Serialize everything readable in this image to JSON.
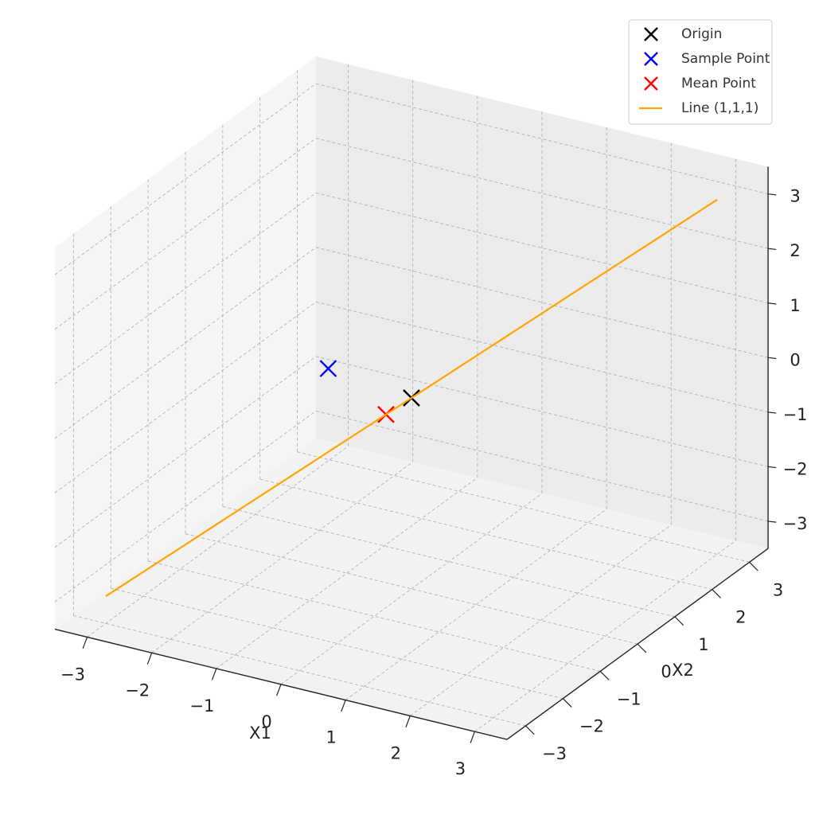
{
  "chart_data": {
    "type": "scatter3d",
    "xlabel": "X1",
    "ylabel": "X2",
    "xlim": [
      -3.5,
      3.5
    ],
    "ylim": [
      -3.5,
      3.5
    ],
    "zlim": [
      -3.5,
      3.5
    ],
    "xticks": [
      {
        "value": -3,
        "label": "−3"
      },
      {
        "value": -2,
        "label": "−2"
      },
      {
        "value": -1,
        "label": "−1"
      },
      0,
      1,
      2,
      3
    ],
    "yticks": [
      {
        "value": -3,
        "label": "−3"
      },
      {
        "value": -2,
        "label": "−2"
      },
      {
        "value": -1,
        "label": "−1"
      },
      0,
      1,
      2,
      3
    ],
    "zticks": [
      {
        "value": -3,
        "label": "−3"
      },
      {
        "value": -2,
        "label": "−2"
      },
      {
        "value": -1,
        "label": "−1"
      },
      0,
      1,
      2,
      3
    ],
    "grid": true,
    "legend": "upper right",
    "series": [
      {
        "name": "Origin",
        "type": "scatter",
        "color": "black",
        "x": [
          0
        ],
        "y": [
          0
        ],
        "z": [
          0
        ]
      },
      {
        "name": "Sample Point",
        "type": "scatter",
        "color": "blue",
        "x": [
          -1
        ],
        "y": [
          -0.5
        ],
        "z": [
          0.5
        ]
      },
      {
        "name": "Mean Point",
        "type": "scatter",
        "color": "red",
        "x": [
          -0.25
        ],
        "y": [
          -0.25
        ],
        "z": [
          -0.25
        ]
      },
      {
        "name": "Line (1,1,1)",
        "type": "line",
        "color": "orange",
        "x": [
          -3,
          3
        ],
        "y": [
          -3,
          3
        ],
        "z": [
          -3,
          3
        ]
      }
    ]
  }
}
